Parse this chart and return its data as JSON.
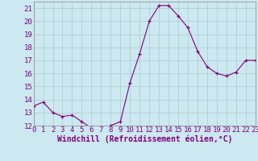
{
  "x": [
    0,
    1,
    2,
    3,
    4,
    5,
    6,
    7,
    8,
    9,
    10,
    11,
    12,
    13,
    14,
    15,
    16,
    17,
    18,
    19,
    20,
    21,
    22,
    23
  ],
  "y": [
    13.5,
    13.8,
    13.0,
    12.7,
    12.8,
    12.3,
    11.8,
    11.7,
    12.0,
    12.3,
    15.3,
    17.5,
    20.0,
    21.2,
    21.2,
    20.4,
    19.5,
    17.7,
    16.5,
    16.0,
    15.8,
    16.1,
    17.0,
    17.0
  ],
  "xlim": [
    0,
    23
  ],
  "ylim": [
    12,
    21.5
  ],
  "yticks": [
    12,
    13,
    14,
    15,
    16,
    17,
    18,
    19,
    20,
    21
  ],
  "xticks": [
    0,
    1,
    2,
    3,
    4,
    5,
    6,
    7,
    8,
    9,
    10,
    11,
    12,
    13,
    14,
    15,
    16,
    17,
    18,
    19,
    20,
    21,
    22,
    23
  ],
  "line_color": "#800080",
  "marker": "+",
  "bg_color": "#cce8f0",
  "grid_color": "#aacccc",
  "xlabel": "Windchill (Refroidissement éolien,°C)",
  "font_color": "#800080",
  "tick_fontsize": 6.5,
  "xlabel_fontsize": 7
}
